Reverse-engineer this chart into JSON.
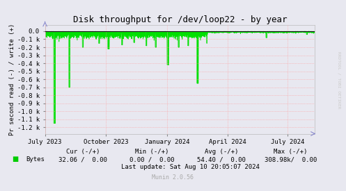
{
  "title": "Disk throughput for /dev/loop22 - by year",
  "ylabel": "Pr second read (-) / write (+)",
  "bg_color": "#e8e8f0",
  "plot_bg_color": "#e8e8f0",
  "line_color": "#00e000",
  "area_color": "#00e000",
  "zero_line_color": "#111111",
  "grid_color": "#ff9999",
  "yticks": [
    0.0,
    -0.1,
    -0.2,
    -0.3,
    -0.4,
    -0.5,
    -0.6,
    -0.7,
    -0.8,
    -0.9,
    -1.0,
    -1.1,
    -1.2
  ],
  "ytick_labels": [
    "0.0",
    "-0.1 k",
    "-0.2 k",
    "-0.3 k",
    "-0.4 k",
    "-0.5 k",
    "-0.6 k",
    "-0.7 k",
    "-0.8 k",
    "-0.9 k",
    "-1.0 k",
    "-1.1 k",
    "-1.2 k"
  ],
  "ylim": [
    -1.28,
    0.08
  ],
  "xlim_start": 1688169600,
  "xlim_end": 1723334400,
  "xtick_positions": [
    1688169600,
    1696118400,
    1704067200,
    1711929600,
    1719792000
  ],
  "xtick_labels": [
    "July 2023",
    "October 2023",
    "January 2024",
    "April 2024",
    "July 2024"
  ],
  "legend_label": "Bytes",
  "legend_color": "#00cc00",
  "cur_neg": "32.06",
  "cur_pos": "0.00",
  "min_neg": "0.00",
  "min_pos": "0.00",
  "avg_neg": "54.40",
  "avg_pos": "0.00",
  "max_neg": "308.98k",
  "max_pos": "0.00",
  "last_update": "Last update: Sat Aug 10 20:05:07 2024",
  "munin_version": "Munin 2.0.56",
  "rrdtool_label": "RRDTOOL / TOBI OETIKER",
  "title_fontsize": 9,
  "axis_fontsize": 6.5,
  "legend_fontsize": 6.5,
  "footer_fontsize": 6.5
}
